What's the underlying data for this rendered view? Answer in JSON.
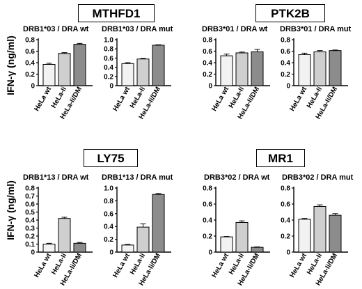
{
  "chart_data": [
    {
      "type": "bar",
      "group": "MTHFD1",
      "title": "DRB1*03 / DRA wt",
      "ylabel": "IFN-γ (ng/ml)",
      "categories": [
        "HeLa wt",
        "HeLa-Ii",
        "HeLa-Ii/DM"
      ],
      "values": [
        0.37,
        0.56,
        0.72
      ],
      "errors": [
        0.02,
        0.015,
        0.015
      ],
      "colors": [
        "#f2f2f2",
        "#cfcfcf",
        "#8c8c8c"
      ],
      "ylim": [
        0,
        0.8
      ],
      "yticks": [
        "0",
        "0.2",
        "0.4",
        "0.6",
        "0.8"
      ]
    },
    {
      "type": "bar",
      "group": "MTHFD1",
      "title": "DRB1*03 / DRA mut",
      "ylabel": "",
      "categories": [
        "HeLa wt",
        "HeLa-Ii",
        "HeLa-Ii/DM"
      ],
      "values": [
        0.48,
        0.58,
        0.88
      ],
      "errors": [
        0.02,
        0.015,
        0.01
      ],
      "colors": [
        "#f2f2f2",
        "#cfcfcf",
        "#8c8c8c"
      ],
      "ylim": [
        0,
        1.0
      ],
      "yticks": [
        "0",
        "0.2",
        "0.4",
        "0.6",
        "0.8",
        "1.0"
      ]
    },
    {
      "type": "bar",
      "group": "PTK2B",
      "title": "DRB3*01 / DRA wt",
      "ylabel": "",
      "categories": [
        "HeLa wt",
        "HeLa-Ii",
        "HeLa-Ii/DM"
      ],
      "values": [
        0.52,
        0.57,
        0.59
      ],
      "errors": [
        0.03,
        0.015,
        0.04
      ],
      "colors": [
        "#f2f2f2",
        "#cfcfcf",
        "#8c8c8c"
      ],
      "ylim": [
        0,
        0.8
      ],
      "yticks": [
        "0",
        "0.2",
        "0.4",
        "0.6",
        "0.8"
      ]
    },
    {
      "type": "bar",
      "group": "PTK2B",
      "title": "DRB3*01 / DRA mut",
      "ylabel": "",
      "categories": [
        "HeLa wt",
        "HeLa-Ii",
        "HeLa-Ii/DM"
      ],
      "values": [
        0.54,
        0.59,
        0.61
      ],
      "errors": [
        0.025,
        0.02,
        0.01
      ],
      "colors": [
        "#f2f2f2",
        "#cfcfcf",
        "#8c8c8c"
      ],
      "ylim": [
        0,
        0.8
      ],
      "yticks": [
        "0",
        "0.2",
        "0.4",
        "0.6",
        "0.8"
      ]
    },
    {
      "type": "bar",
      "group": "LY75",
      "title": "DRB1*13 / DRA wt",
      "ylabel": "IFN-γ (ng/ml)",
      "categories": [
        "HeLa wt",
        "HeLa-Ii",
        "HeLa-Ii/DM"
      ],
      "values": [
        0.1,
        0.42,
        0.11
      ],
      "errors": [
        0.01,
        0.015,
        0.01
      ],
      "colors": [
        "#f2f2f2",
        "#cfcfcf",
        "#8c8c8c"
      ],
      "ylim": [
        0,
        0.8
      ],
      "yticks": [
        "0",
        "0.1",
        "0.2",
        "0.3",
        "0.4",
        "0.5",
        "0.6",
        "0.7",
        "0.8"
      ]
    },
    {
      "type": "bar",
      "group": "LY75",
      "title": "DRB1*13 / DRA mut",
      "ylabel": "",
      "categories": [
        "HeLa wt",
        "HeLa-Ii",
        "HeLa-Ii/DM"
      ],
      "values": [
        0.11,
        0.39,
        0.9
      ],
      "errors": [
        0.01,
        0.05,
        0.015
      ],
      "colors": [
        "#f2f2f2",
        "#cfcfcf",
        "#8c8c8c"
      ],
      "ylim": [
        0,
        1.0
      ],
      "yticks": [
        "0",
        "0.2",
        "0.4",
        "0.6",
        "0.8",
        "1.0"
      ]
    },
    {
      "type": "bar",
      "group": "MR1",
      "title": "DRB3*02 / DRA wt",
      "ylabel": "",
      "categories": [
        "HeLa wt",
        "HeLa-Ii",
        "HeLa-Ii/DM"
      ],
      "values": [
        0.19,
        0.37,
        0.06
      ],
      "errors": [
        0.005,
        0.02,
        0.005
      ],
      "colors": [
        "#f2f2f2",
        "#cfcfcf",
        "#8c8c8c"
      ],
      "ylim": [
        0,
        0.8
      ],
      "yticks": [
        "0",
        "0.2",
        "0.4",
        "0.6",
        "0.8"
      ]
    },
    {
      "type": "bar",
      "group": "MR1",
      "title": "DRB3*02 / DRA mut",
      "ylabel": "",
      "categories": [
        "HeLa wt",
        "HeLa-Ii",
        "HeLa-Ii/DM"
      ],
      "values": [
        0.41,
        0.57,
        0.46
      ],
      "errors": [
        0.01,
        0.02,
        0.02
      ],
      "colors": [
        "#f2f2f2",
        "#cfcfcf",
        "#8c8c8c"
      ],
      "ylim": [
        0,
        0.8
      ],
      "yticks": [
        "0",
        "0.2",
        "0.4",
        "0.6",
        "0.8"
      ]
    }
  ],
  "groups": [
    "MTHFD1",
    "PTK2B",
    "LY75",
    "MR1"
  ],
  "ylabel": "IFN-γ (ng/ml)"
}
